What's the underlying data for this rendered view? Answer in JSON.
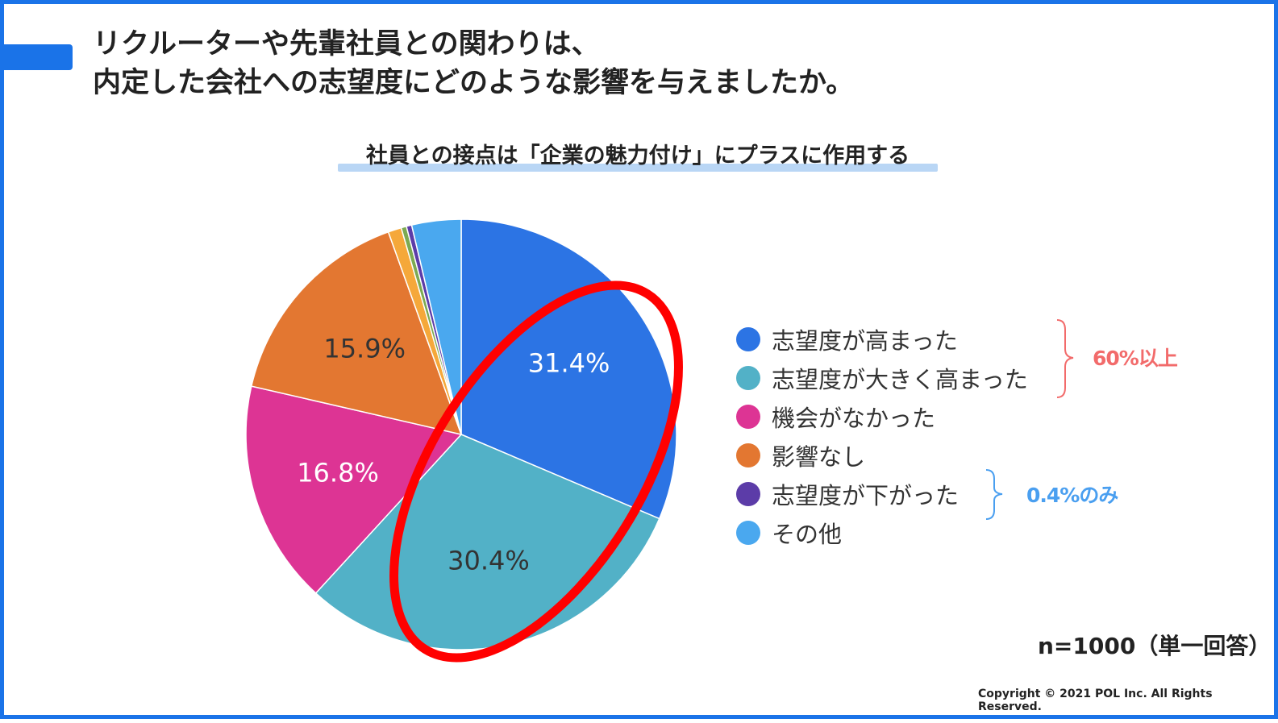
{
  "slide": {
    "title_line1": "リクルーターや先輩社員との関わりは、",
    "title_line2": "内定した会社への志望度にどのような影響を与えましたか。",
    "subtitle": "社員との接点は「企業の魅力付け」にプラスに作用する",
    "sample_note": "n=1000（単一回答）",
    "copyright": "Copyright © 2021 POL Inc. All Rights Reserved.",
    "accent_color": "#1a73e8",
    "highlight_color": "#ff0000"
  },
  "annotations": {
    "top_group": {
      "text": "60%以上",
      "color": "#f26b6b"
    },
    "bottom_group": {
      "text": "0.4%のみ",
      "color": "#4a9ff0"
    }
  },
  "chart_data": {
    "type": "pie",
    "title": "",
    "start": "12 o'clock",
    "direction": "clockwise",
    "slices": [
      {
        "label": "志望度が高まった",
        "value": 31.4,
        "display": "31.4%",
        "color": "#2c74e4"
      },
      {
        "label": "志望度が大きく高まった",
        "value": 30.4,
        "display": "30.4%",
        "color": "#52b1c7"
      },
      {
        "label": "機会がなかった",
        "value": 16.8,
        "display": "16.8%",
        "color": "#dd3494"
      },
      {
        "label": "影響なし",
        "value": 15.9,
        "display": "15.9%",
        "color": "#e37731"
      },
      {
        "label": "",
        "value": 1.0,
        "display": "",
        "color": "#f5a83a"
      },
      {
        "label": "",
        "value": 0.4,
        "display": "",
        "color": "#7caa52"
      },
      {
        "label": "志望度が下がった",
        "value": 0.4,
        "display": "",
        "color": "#5c3ca8"
      },
      {
        "label": "その他",
        "value": 3.7,
        "display": "",
        "color": "#4aa8ef"
      }
    ],
    "legend": [
      {
        "label": "志望度が高まった",
        "color": "#2c74e4"
      },
      {
        "label": "志望度が大きく高まった",
        "color": "#52b1c7"
      },
      {
        "label": "機会がなかった",
        "color": "#dd3494"
      },
      {
        "label": "影響なし",
        "color": "#e37731"
      },
      {
        "label": "志望度が下がった",
        "color": "#5c3ca8"
      },
      {
        "label": "その他",
        "color": "#4aa8ef"
      }
    ],
    "legend_position": "right"
  }
}
